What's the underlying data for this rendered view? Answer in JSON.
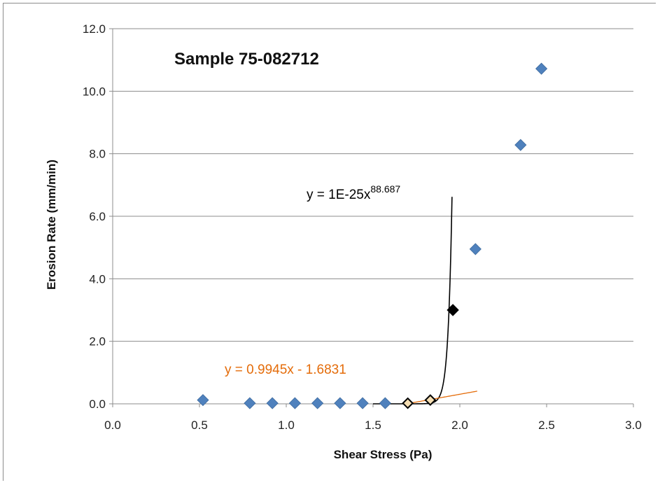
{
  "chart_data": {
    "type": "scatter",
    "title": "Sample 75-082712",
    "xlabel": "Shear Stress (Pa)",
    "ylabel": "Erosion Rate (mm/min)",
    "xlim": [
      0,
      3
    ],
    "ylim": [
      0,
      12
    ],
    "x_ticks": [
      "0.0",
      "0.5",
      "1.0",
      "1.5",
      "2.0",
      "2.5",
      "3.0"
    ],
    "y_ticks": [
      "0.0",
      "2.0",
      "4.0",
      "6.0",
      "8.0",
      "10.0",
      "12.0"
    ],
    "grid": "horizontal",
    "series": [
      {
        "marker": "diamond-filled",
        "color": "#4f81bd",
        "points": [
          [
            0.52,
            0.12
          ],
          [
            0.79,
            0.02
          ],
          [
            0.92,
            0.02
          ],
          [
            1.05,
            0.02
          ],
          [
            1.18,
            0.02
          ],
          [
            1.31,
            0.02
          ],
          [
            1.44,
            0.02
          ],
          [
            1.57,
            0.02
          ],
          [
            2.09,
            4.95
          ],
          [
            2.35,
            8.28
          ],
          [
            2.47,
            10.72
          ]
        ]
      },
      {
        "marker": "diamond-open",
        "color": "#000000",
        "points": [
          [
            1.7,
            0.02
          ],
          [
            1.83,
            0.12
          ]
        ]
      },
      {
        "marker": "diamond-black",
        "color": "#000000",
        "points": [
          [
            1.96,
            3.0
          ]
        ]
      }
    ],
    "trendlines": [
      {
        "kind": "power",
        "coef": 1e-25,
        "exponent": 88.687,
        "color": "#000000",
        "equation_text": "y = 1E-25x",
        "equation_exp": "88.687",
        "x_range": [
          1.5,
          1.955
        ]
      },
      {
        "kind": "linear",
        "slope": 0.9945,
        "intercept": -1.6831,
        "color": "#e46c0a",
        "equation_text": "y = 0.9945x - 1.6831",
        "x_range": [
          1.69,
          2.1
        ]
      }
    ]
  }
}
